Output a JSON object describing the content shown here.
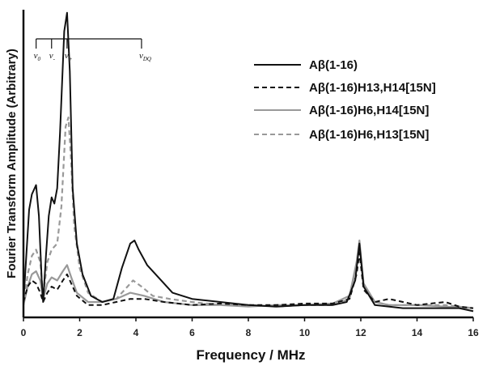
{
  "chart_data": {
    "type": "line",
    "title": "",
    "xlabel": "Frequency / MHz",
    "ylabel": "Fourier Transform Amplitude (Arbitrary)",
    "xlim": [
      0,
      16
    ],
    "ylim": [
      0,
      1
    ],
    "x_ticks": [
      "0",
      "2",
      "4",
      "6",
      "8",
      "10",
      "12",
      "14",
      "16"
    ],
    "grid": false,
    "legend_position": "top-right",
    "annotations": [
      {
        "symbol": "ν",
        "sub": "0",
        "x": 0.45
      },
      {
        "symbol": "ν",
        "sub": "-",
        "x": 1.0
      },
      {
        "symbol": "ν",
        "sub": "+",
        "x": 1.55
      },
      {
        "symbol": "ν",
        "sub": "DQ",
        "x": 4.2
      }
    ],
    "series": [
      {
        "name": "Aβ(1-16)",
        "line_style": "solid",
        "color": "#111111",
        "points": [
          [
            0,
            0.05
          ],
          [
            0.1,
            0.2
          ],
          [
            0.2,
            0.35
          ],
          [
            0.3,
            0.4
          ],
          [
            0.45,
            0.43
          ],
          [
            0.55,
            0.33
          ],
          [
            0.65,
            0.12
          ],
          [
            0.7,
            0.05
          ],
          [
            0.8,
            0.2
          ],
          [
            0.9,
            0.33
          ],
          [
            1.0,
            0.39
          ],
          [
            1.1,
            0.37
          ],
          [
            1.2,
            0.42
          ],
          [
            1.3,
            0.6
          ],
          [
            1.45,
            0.93
          ],
          [
            1.55,
            0.99
          ],
          [
            1.65,
            0.8
          ],
          [
            1.75,
            0.42
          ],
          [
            1.9,
            0.24
          ],
          [
            2.1,
            0.14
          ],
          [
            2.4,
            0.07
          ],
          [
            2.8,
            0.05
          ],
          [
            3.2,
            0.06
          ],
          [
            3.5,
            0.16
          ],
          [
            3.8,
            0.24
          ],
          [
            3.95,
            0.25
          ],
          [
            4.1,
            0.22
          ],
          [
            4.4,
            0.17
          ],
          [
            4.8,
            0.13
          ],
          [
            5.3,
            0.08
          ],
          [
            6.0,
            0.06
          ],
          [
            7.0,
            0.05
          ],
          [
            8.0,
            0.04
          ],
          [
            9.0,
            0.035
          ],
          [
            10.0,
            0.04
          ],
          [
            11.0,
            0.04
          ],
          [
            11.5,
            0.05
          ],
          [
            11.8,
            0.12
          ],
          [
            11.95,
            0.24
          ],
          [
            12.1,
            0.1
          ],
          [
            12.5,
            0.04
          ],
          [
            13.5,
            0.03
          ],
          [
            14.5,
            0.03
          ],
          [
            15.5,
            0.03
          ],
          [
            16,
            0.02
          ]
        ]
      },
      {
        "name": "Aβ(1-16)H13,H14[15N]",
        "line_style": "dashed",
        "color": "#111111",
        "points": [
          [
            0,
            0.05
          ],
          [
            0.15,
            0.1
          ],
          [
            0.3,
            0.12
          ],
          [
            0.45,
            0.11
          ],
          [
            0.6,
            0.08
          ],
          [
            0.7,
            0.05
          ],
          [
            0.85,
            0.08
          ],
          [
            1.0,
            0.1
          ],
          [
            1.2,
            0.09
          ],
          [
            1.4,
            0.12
          ],
          [
            1.55,
            0.14
          ],
          [
            1.7,
            0.11
          ],
          [
            1.9,
            0.07
          ],
          [
            2.3,
            0.04
          ],
          [
            2.8,
            0.04
          ],
          [
            3.3,
            0.05
          ],
          [
            3.8,
            0.06
          ],
          [
            4.3,
            0.06
          ],
          [
            5.0,
            0.05
          ],
          [
            6.0,
            0.04
          ],
          [
            7.0,
            0.045
          ],
          [
            8.0,
            0.04
          ],
          [
            9.0,
            0.04
          ],
          [
            10.0,
            0.045
          ],
          [
            11.0,
            0.045
          ],
          [
            11.6,
            0.06
          ],
          [
            11.85,
            0.14
          ],
          [
            11.95,
            0.21
          ],
          [
            12.1,
            0.09
          ],
          [
            12.5,
            0.05
          ],
          [
            13.0,
            0.06
          ],
          [
            13.5,
            0.05
          ],
          [
            14.0,
            0.04
          ],
          [
            14.5,
            0.045
          ],
          [
            15.0,
            0.05
          ],
          [
            15.5,
            0.035
          ],
          [
            16,
            0.03
          ]
        ]
      },
      {
        "name": "Aβ(1-16)H6,H14[15N]",
        "line_style": "solid",
        "color": "#999999",
        "points": [
          [
            0,
            0.04
          ],
          [
            0.15,
            0.1
          ],
          [
            0.3,
            0.14
          ],
          [
            0.45,
            0.15
          ],
          [
            0.6,
            0.12
          ],
          [
            0.7,
            0.06
          ],
          [
            0.85,
            0.11
          ],
          [
            1.0,
            0.13
          ],
          [
            1.2,
            0.12
          ],
          [
            1.4,
            0.15
          ],
          [
            1.55,
            0.17
          ],
          [
            1.7,
            0.13
          ],
          [
            1.9,
            0.08
          ],
          [
            2.3,
            0.05
          ],
          [
            2.8,
            0.05
          ],
          [
            3.3,
            0.06
          ],
          [
            3.8,
            0.08
          ],
          [
            4.3,
            0.07
          ],
          [
            5.0,
            0.05
          ],
          [
            6.0,
            0.04
          ],
          [
            7.0,
            0.04
          ],
          [
            8.0,
            0.035
          ],
          [
            9.0,
            0.04
          ],
          [
            10.0,
            0.04
          ],
          [
            11.0,
            0.045
          ],
          [
            11.6,
            0.07
          ],
          [
            11.85,
            0.18
          ],
          [
            11.95,
            0.25
          ],
          [
            12.1,
            0.11
          ],
          [
            12.5,
            0.05
          ],
          [
            13.0,
            0.04
          ],
          [
            14.0,
            0.04
          ],
          [
            15.0,
            0.035
          ],
          [
            16,
            0.03
          ]
        ]
      },
      {
        "name": "Aβ(1-16)H6,H13[15N]",
        "line_style": "dashed",
        "color": "#999999",
        "points": [
          [
            0,
            0.04
          ],
          [
            0.15,
            0.14
          ],
          [
            0.3,
            0.2
          ],
          [
            0.45,
            0.22
          ],
          [
            0.6,
            0.18
          ],
          [
            0.7,
            0.07
          ],
          [
            0.85,
            0.18
          ],
          [
            1.0,
            0.22
          ],
          [
            1.2,
            0.24
          ],
          [
            1.35,
            0.36
          ],
          [
            1.5,
            0.62
          ],
          [
            1.6,
            0.65
          ],
          [
            1.7,
            0.5
          ],
          [
            1.8,
            0.3
          ],
          [
            2.0,
            0.16
          ],
          [
            2.3,
            0.08
          ],
          [
            2.8,
            0.05
          ],
          [
            3.3,
            0.06
          ],
          [
            3.7,
            0.1
          ],
          [
            3.9,
            0.12
          ],
          [
            4.2,
            0.1
          ],
          [
            4.6,
            0.07
          ],
          [
            5.2,
            0.06
          ],
          [
            6.0,
            0.05
          ],
          [
            7.0,
            0.04
          ],
          [
            8.0,
            0.04
          ],
          [
            9.0,
            0.035
          ],
          [
            10.0,
            0.04
          ],
          [
            11.0,
            0.04
          ],
          [
            11.6,
            0.06
          ],
          [
            11.85,
            0.17
          ],
          [
            11.95,
            0.24
          ],
          [
            12.1,
            0.1
          ],
          [
            12.5,
            0.05
          ],
          [
            13.0,
            0.04
          ],
          [
            14.0,
            0.04
          ],
          [
            15.0,
            0.04
          ],
          [
            16,
            0.03
          ]
        ]
      }
    ]
  }
}
